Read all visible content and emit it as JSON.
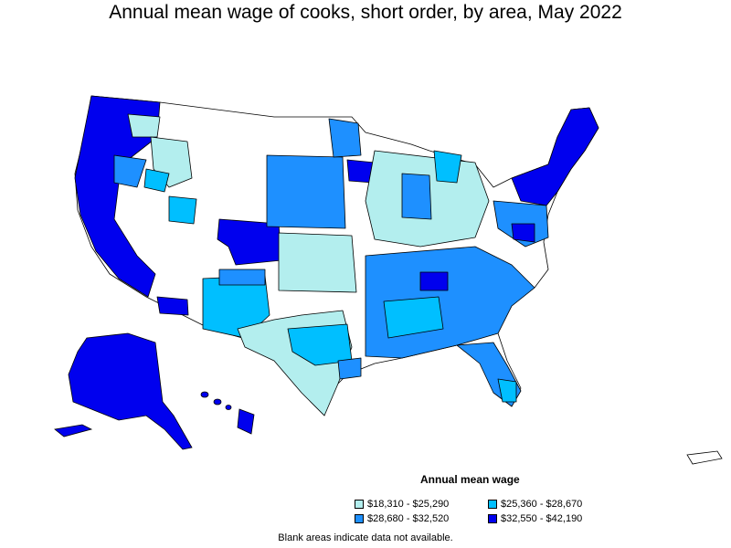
{
  "title": "Annual mean wage of cooks, short order, by area, May 2022",
  "legend": {
    "title": "Annual mean wage",
    "items": [
      {
        "label": "$18,310 - $25,290",
        "color": "#b3eeee"
      },
      {
        "label": "$25,360 - $28,670",
        "color": "#00bfff"
      },
      {
        "label": "$28,680 - $32,520",
        "color": "#1e90ff"
      },
      {
        "label": "$32,550 - $42,190",
        "color": "#0000ee"
      }
    ]
  },
  "footnote": "Blank areas indicate data not available.",
  "colors": {
    "outline": "#000000",
    "nodata": "#ffffff"
  }
}
